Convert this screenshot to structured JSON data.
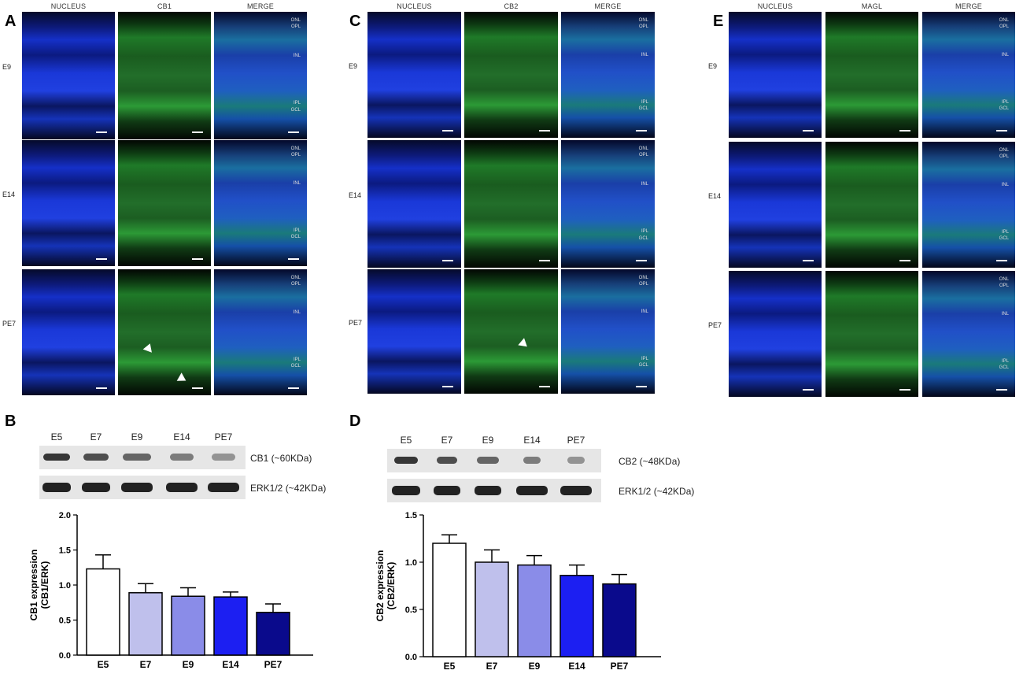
{
  "panels": {
    "A": {
      "letter": "A",
      "columns": [
        "NUCLEUS",
        "CB1",
        "MERGE"
      ],
      "rows": [
        "E9",
        "E14",
        "PE7"
      ],
      "layers": [
        "ONL",
        "OPL",
        "INL",
        "IPL",
        "GCL"
      ]
    },
    "C": {
      "letter": "C",
      "columns": [
        "NUCLEUS",
        "CB2",
        "MERGE"
      ],
      "rows": [
        "E9",
        "E14",
        "PE7"
      ],
      "layers": [
        "ONL",
        "OPL",
        "INL",
        "IPL",
        "GCL"
      ]
    },
    "E": {
      "letter": "E",
      "columns": [
        "NUCLEUS",
        "MAGL",
        "MERGE"
      ],
      "rows": [
        "E9",
        "E14",
        "PE7"
      ],
      "layers": [
        "ONL",
        "OPL",
        "INL",
        "IPL",
        "GCL"
      ]
    },
    "B": {
      "letter": "B",
      "lanes": [
        "E5",
        "E7",
        "E9",
        "E14",
        "PE7"
      ],
      "blot1_label": "CB1 (~60KDa)",
      "blot2_label": "ERK1/2 (~42KDa)"
    },
    "D": {
      "letter": "D",
      "lanes": [
        "E5",
        "E7",
        "E9",
        "E14",
        "PE7"
      ],
      "blot1_label": "CB2 (~48KDa)",
      "blot2_label": "ERK1/2 (~42KDa)"
    }
  },
  "chart_data": [
    {
      "type": "bar",
      "panel": "B",
      "categories": [
        "E5",
        "E7",
        "E9",
        "E14",
        "PE7"
      ],
      "values": [
        1.23,
        0.89,
        0.84,
        0.83,
        0.61
      ],
      "errors": [
        0.2,
        0.13,
        0.12,
        0.07,
        0.12
      ],
      "colors": [
        "#ffffff",
        "#bfc0ec",
        "#8a8ce8",
        "#1c1ff2",
        "#0a0a8c"
      ],
      "ylabel": "CB1 expression\n(CB1/ERK)",
      "ylim": [
        0,
        2.0
      ],
      "yticks": [
        "0.0",
        "0.5",
        "1.0",
        "1.5",
        "2.0"
      ]
    },
    {
      "type": "bar",
      "panel": "D",
      "categories": [
        "E5",
        "E7",
        "E9",
        "E14",
        "PE7"
      ],
      "values": [
        1.2,
        1.0,
        0.97,
        0.86,
        0.77
      ],
      "errors": [
        0.09,
        0.13,
        0.1,
        0.11,
        0.1
      ],
      "colors": [
        "#ffffff",
        "#bfc0ec",
        "#8a8ce8",
        "#1c1ff2",
        "#0a0a8c"
      ],
      "ylabel": "CB2 expression\n(CB2/ERK)",
      "ylim": [
        0,
        1.5
      ],
      "yticks": [
        "0.0",
        "0.5",
        "1.0",
        "1.5"
      ]
    }
  ]
}
